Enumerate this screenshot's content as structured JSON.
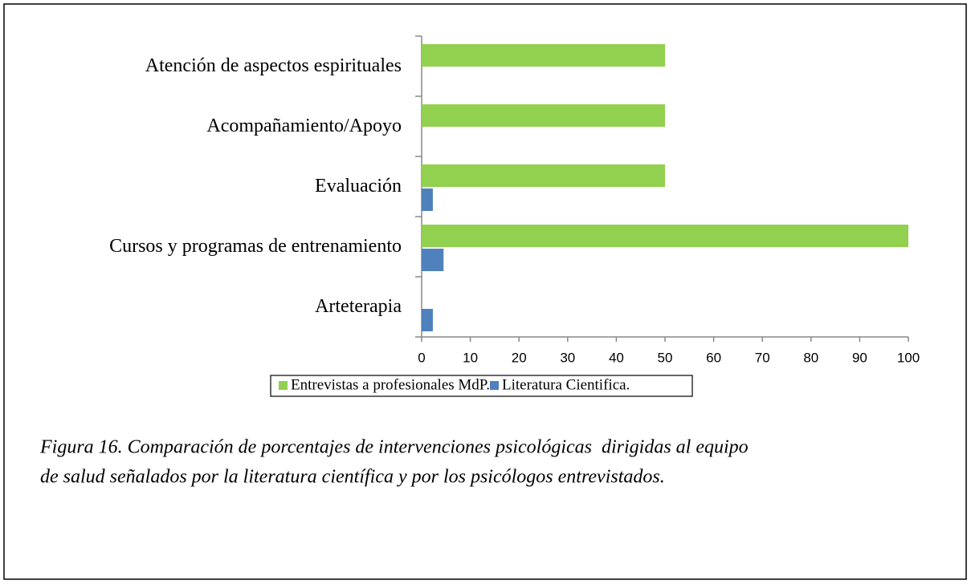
{
  "chart_data": {
    "type": "hbar",
    "categories": [
      "Atención de aspectos espirituales",
      "Acompañamiento/Apoyo",
      "Evaluación",
      "Cursos y programas de entrenamiento",
      "Arteterapia"
    ],
    "series": [
      {
        "name": "Entrevistas a profesionales MdP.",
        "color": "#92d050",
        "values": [
          50,
          50,
          50,
          100,
          0
        ]
      },
      {
        "name": "Literatura Cientifica.",
        "color": "#4f81bd",
        "values": [
          0,
          0,
          2.3,
          4.5,
          2.3
        ]
      }
    ],
    "xlim": [
      0,
      100
    ],
    "xticks": [
      0,
      10,
      20,
      30,
      40,
      50,
      60,
      70,
      80,
      90,
      100
    ],
    "grid": false,
    "legend": "bottom",
    "caption": [
      "Figura 16. Comparación de porcentajes de intervenciones psicológicas  dirigidas al equipo",
      "de salud señalados por la literatura científica y por los psicólogos entrevistados."
    ]
  }
}
